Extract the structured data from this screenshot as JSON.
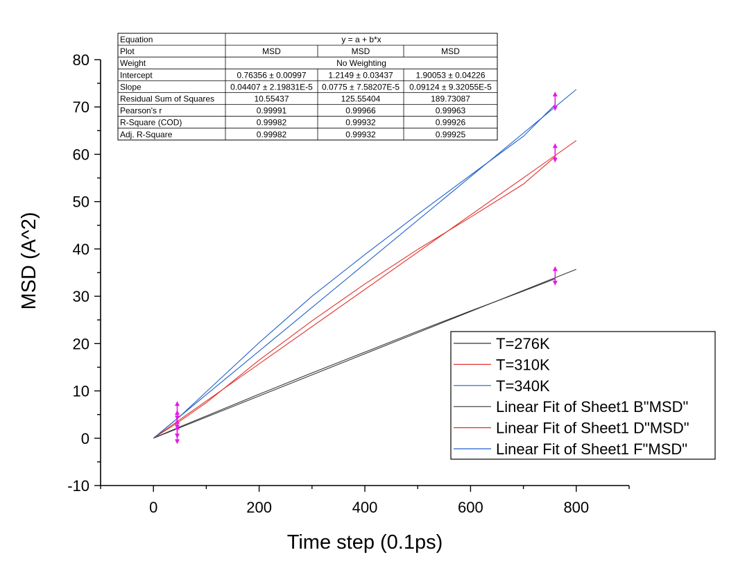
{
  "chart_data": {
    "type": "line",
    "xlabel": "Time step (0.1ps)",
    "ylabel": "MSD (A^2)",
    "xlim": [
      -100,
      900
    ],
    "ylim": [
      -10,
      80
    ],
    "xticks": [
      0,
      200,
      400,
      600,
      800
    ],
    "yticks": [
      -10,
      0,
      10,
      20,
      30,
      40,
      50,
      60,
      70,
      80
    ],
    "legend_position": "bottom-right",
    "series": [
      {
        "name": "T=276K",
        "color": "#333333",
        "x": [
          0,
          50,
          100,
          200,
          300,
          400,
          500,
          600,
          700,
          760
        ],
        "y": [
          0,
          2.4,
          4.7,
          9.3,
          13.8,
          18.2,
          22.6,
          26.9,
          31.1,
          33.7
        ]
      },
      {
        "name": "T=310K",
        "color": "#e0302c",
        "x": [
          0,
          50,
          100,
          200,
          300,
          400,
          500,
          600,
          700,
          760
        ],
        "y": [
          0,
          3.6,
          7.5,
          16.5,
          24.8,
          32.6,
          39.9,
          46.7,
          53.7,
          59.5
        ]
      },
      {
        "name": "T=340K",
        "color": "#1f5fc9",
        "x": [
          0,
          50,
          100,
          200,
          300,
          400,
          500,
          600,
          700,
          760
        ],
        "y": [
          0,
          4.6,
          9.8,
          20.2,
          30.0,
          38.8,
          47.3,
          55.6,
          63.8,
          70.5
        ]
      },
      {
        "name": "Linear Fit of Sheet1 B\"MSD\"",
        "color": "#333333",
        "fit": true,
        "x": [
          0,
          800
        ],
        "y": [
          0,
          35.7
        ]
      },
      {
        "name": "Linear Fit of Sheet1 D\"MSD\"",
        "color": "#e0302c",
        "fit": true,
        "x": [
          0,
          800
        ],
        "y": [
          0,
          62.9
        ]
      },
      {
        "name": "Linear Fit of Sheet1 F\"MSD\"",
        "color": "#1f5fc9",
        "fit": true,
        "x": [
          0,
          800
        ],
        "y": [
          0,
          73.7
        ]
      }
    ],
    "markers": {
      "color": "#e619e6",
      "points": [
        {
          "x": 45,
          "y": 5.8
        },
        {
          "x": 45,
          "y": 3.9
        },
        {
          "x": 45,
          "y": 2.0
        },
        {
          "x": 45,
          "y": 0.8
        },
        {
          "x": 760,
          "y": 71.2
        },
        {
          "x": 760,
          "y": 60.3
        },
        {
          "x": 760,
          "y": 34.3
        }
      ]
    },
    "stats_table": {
      "rows": [
        {
          "label": "Equation",
          "span": true,
          "values": [
            "y = a + b*x"
          ]
        },
        {
          "label": "Plot",
          "values": [
            "MSD",
            "MSD",
            "MSD"
          ]
        },
        {
          "label": "Weight",
          "span": true,
          "values": [
            "No Weighting"
          ]
        },
        {
          "label": "Intercept",
          "values": [
            "0.76356 ± 0.00997",
            "1.2149 ± 0.03437",
            "1.90053 ± 0.04226"
          ]
        },
        {
          "label": "Slope",
          "values": [
            "0.04407 ± 2.19831E-5",
            "0.0775 ± 7.58207E-5",
            "0.09124 ± 9.32055E-5"
          ]
        },
        {
          "label": "Residual Sum of Squares",
          "values": [
            "10.55437",
            "125.55404",
            "189.73087"
          ]
        },
        {
          "label": "Pearson's r",
          "values": [
            "0.99991",
            "0.99966",
            "0.99963"
          ]
        },
        {
          "label": "R-Square (COD)",
          "values": [
            "0.99982",
            "0.99932",
            "0.99926"
          ]
        },
        {
          "label": "Adj. R-Square",
          "values": [
            "0.99982",
            "0.99932",
            "0.99925"
          ]
        }
      ]
    }
  }
}
